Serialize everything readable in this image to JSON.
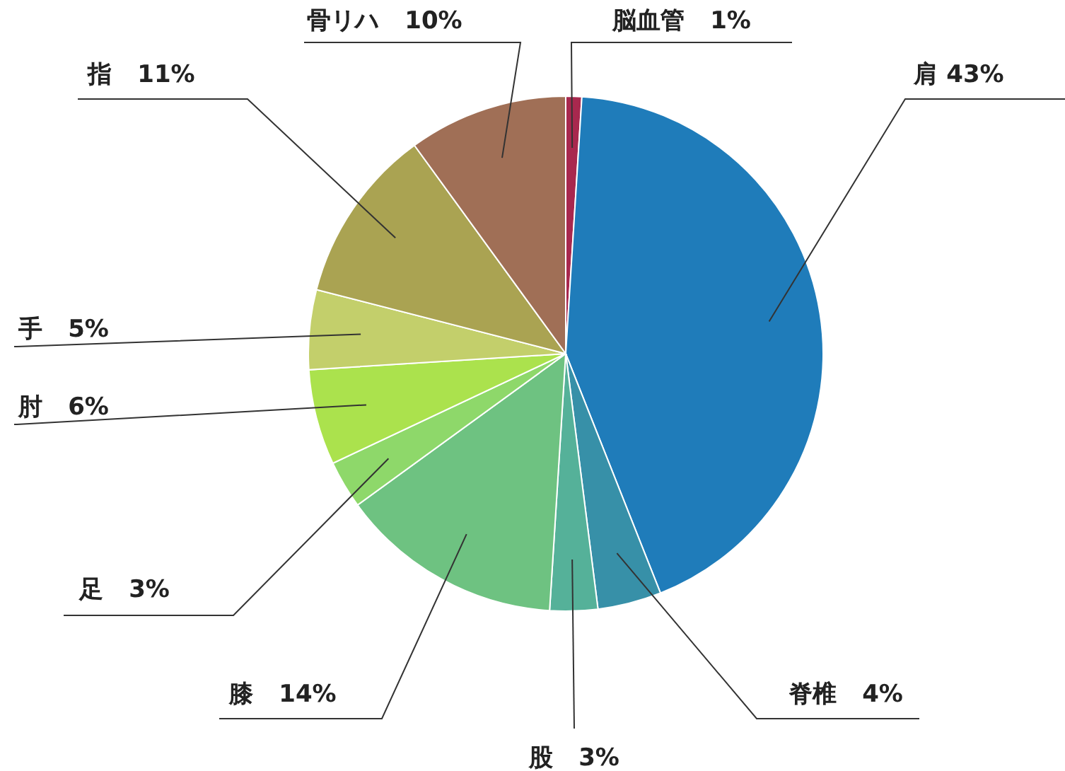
{
  "chart_data": {
    "type": "pie",
    "categories": [
      "脳血管",
      "肩",
      "脊椎",
      "股",
      "膝",
      "足",
      "肘",
      "手",
      "指",
      "骨リハ"
    ],
    "values": [
      1,
      43,
      4,
      3,
      14,
      3,
      6,
      5,
      11,
      10
    ],
    "value_labels": [
      "1%",
      "43%",
      "4%",
      "3%",
      "14%",
      "3%",
      "6%",
      "5%",
      "11%",
      "10%"
    ],
    "colors": [
      "#a8284e",
      "#1f7cba",
      "#3790a8",
      "#55b199",
      "#6ec281",
      "#8ed86a",
      "#abe24d",
      "#c3cf6b",
      "#aaa352",
      "#a06f56"
    ]
  }
}
